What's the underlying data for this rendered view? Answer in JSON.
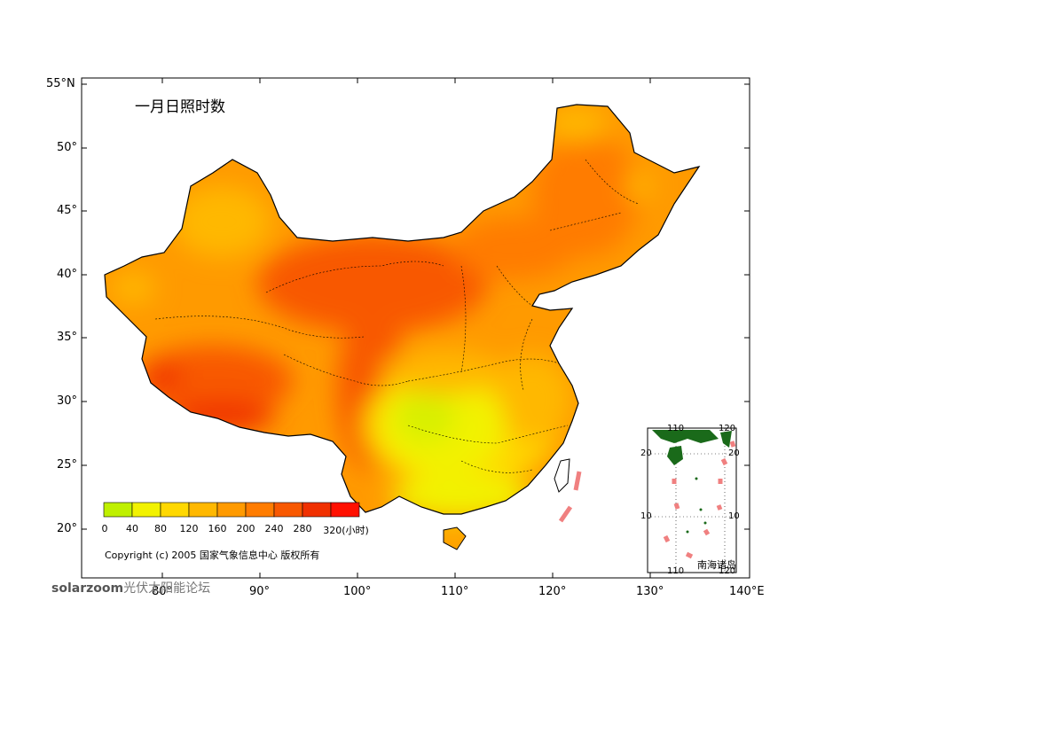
{
  "title": "一月日照时数",
  "lat_labels": [
    "55°N",
    "50°",
    "45°",
    "40°",
    "35°",
    "30°",
    "25°",
    "20°"
  ],
  "lon_labels": [
    "80°",
    "90°",
    "100°",
    "110°",
    "120°",
    "130°",
    "140°E"
  ],
  "legend": {
    "ticks": [
      "0",
      "40",
      "80",
      "120",
      "160",
      "200",
      "240",
      "280",
      "320(小时)"
    ],
    "colors": [
      "#bff000",
      "#f2f200",
      "#ffd800",
      "#ffb800",
      "#ff9a00",
      "#ff7c00",
      "#f85800",
      "#f03000",
      "#ff1000"
    ]
  },
  "copyright": "Copyright (c) 2005 国家气象信息中心 版权所有",
  "inset": {
    "lon_top": [
      "110",
      "120"
    ],
    "lon_bottom": [
      "110",
      "120"
    ],
    "lat_left": [
      "20",
      "10"
    ],
    "lat_right": [
      "20",
      "10"
    ],
    "label": "南海诸岛"
  },
  "watermark": {
    "brand": "solarzoom",
    "text": "光伏太阳能论坛"
  },
  "colors": {
    "frame": "#000000",
    "dash": "#f08080",
    "island": "#1a6a1a"
  }
}
